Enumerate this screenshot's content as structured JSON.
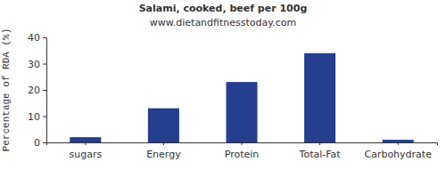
{
  "chart_data": {
    "type": "bar",
    "title": "Salami, cooked, beef per 100g",
    "subtitle": "www.dietandfitnesstoday.com",
    "ylabel": "Percentage of RDA (%)",
    "categories": [
      "sugars",
      "Energy",
      "Protein",
      "Total-Fat",
      "Carbohydrate"
    ],
    "values": [
      2,
      13,
      23,
      34,
      1
    ],
    "color": "#253f8e",
    "ylim": [
      0,
      40
    ],
    "yticks": [
      0,
      10,
      20,
      30,
      40
    ],
    "grid": false
  }
}
